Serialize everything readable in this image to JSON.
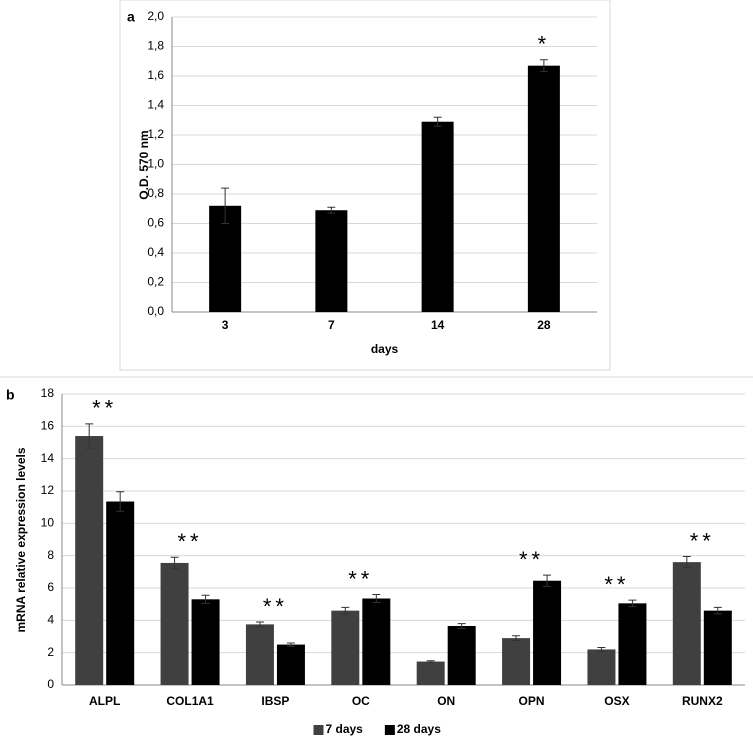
{
  "chart_data": [
    {
      "type": "bar",
      "panel": "a",
      "ylabel": "O.D. 570 nm",
      "xlabel": "days",
      "categories": [
        "3",
        "7",
        "14",
        "28"
      ],
      "values": [
        0.72,
        0.69,
        1.29,
        1.67
      ],
      "errors": [
        0.12,
        0.02,
        0.03,
        0.04
      ],
      "annotations": [
        null,
        null,
        null,
        "*"
      ],
      "color": "#000000",
      "ylim": [
        0,
        2
      ],
      "yticks": [
        {
          "value": 0,
          "label": "0,0"
        },
        {
          "value": 0.2,
          "label": "0,2"
        },
        {
          "value": 0.4,
          "label": "0,4"
        },
        {
          "value": 0.6,
          "label": "0,6"
        },
        {
          "value": 0.8,
          "label": "0,8"
        },
        {
          "value": 1,
          "label": "1,0"
        },
        {
          "value": 1.2,
          "label": "1,2"
        },
        {
          "value": 1.4,
          "label": "1,4"
        },
        {
          "value": 1.6,
          "label": "1,6"
        },
        {
          "value": 1.8,
          "label": "1,8"
        },
        {
          "value": 2,
          "label": "2,0"
        }
      ],
      "grid": true
    },
    {
      "type": "bar",
      "panel": "b",
      "ylabel": "mRNA relative expression levels",
      "categories": [
        "ALPL",
        "COL1A1",
        "IBSP",
        "OC",
        "ON",
        "OPN",
        "OSX",
        "RUNX2"
      ],
      "series": [
        {
          "name": "7 days",
          "color": "#404040",
          "values": [
            15.4,
            7.55,
            3.75,
            4.6,
            1.45,
            2.9,
            2.2,
            7.6
          ],
          "errors": [
            0.75,
            0.35,
            0.15,
            0.2,
            0.05,
            0.15,
            0.12,
            0.35
          ]
        },
        {
          "name": "28 days",
          "color": "#000000",
          "values": [
            11.35,
            5.3,
            2.5,
            5.35,
            3.65,
            6.45,
            5.05,
            4.6
          ],
          "errors": [
            0.6,
            0.25,
            0.1,
            0.25,
            0.15,
            0.35,
            0.2,
            0.2
          ]
        }
      ],
      "annotations": [
        "**",
        "**",
        "**",
        "**",
        null,
        "**",
        "**",
        "**"
      ],
      "ylim": [
        0,
        18
      ],
      "yticks": [
        0,
        2,
        4,
        6,
        8,
        10,
        12,
        14,
        16,
        18
      ],
      "grid": true,
      "legend": "bottom"
    }
  ]
}
